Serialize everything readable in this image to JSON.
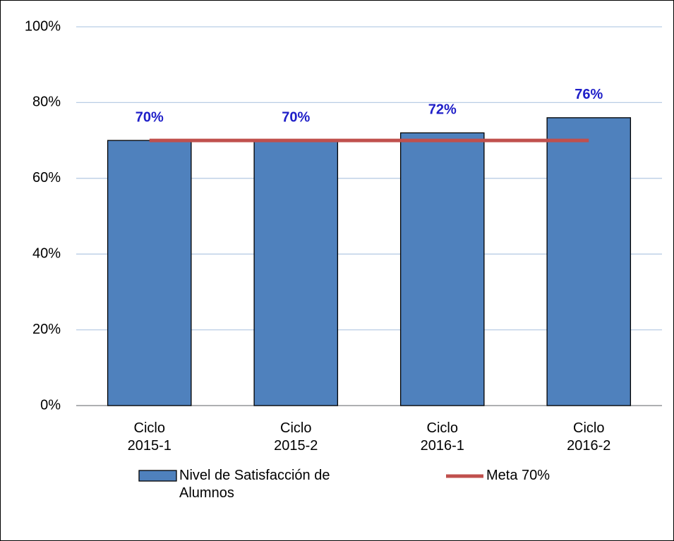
{
  "chart_data": {
    "type": "bar",
    "categories": [
      "Ciclo 2015-1",
      "Ciclo 2015-2",
      "Ciclo 2016-1",
      "Ciclo 2016-2"
    ],
    "series": [
      {
        "name": "Nivel de Satisfacción de Alumnos",
        "type": "bar",
        "color": "#4f81bd",
        "values": [
          70,
          70,
          72,
          76
        ],
        "value_labels": [
          "70%",
          "70%",
          "72%",
          "76%"
        ]
      },
      {
        "name": "Meta 70%",
        "type": "line",
        "color": "#c0504d",
        "values": [
          70,
          70,
          70,
          70
        ]
      }
    ],
    "ylim": [
      0,
      100
    ],
    "yticks": [
      {
        "value": 0,
        "label": "0%"
      },
      {
        "value": 20,
        "label": "20%"
      },
      {
        "value": 40,
        "label": "40%"
      },
      {
        "value": 60,
        "label": "60%"
      },
      {
        "value": 80,
        "label": "80%"
      },
      {
        "value": 100,
        "label": "100%"
      }
    ],
    "grid": true,
    "legend": "bottom"
  }
}
